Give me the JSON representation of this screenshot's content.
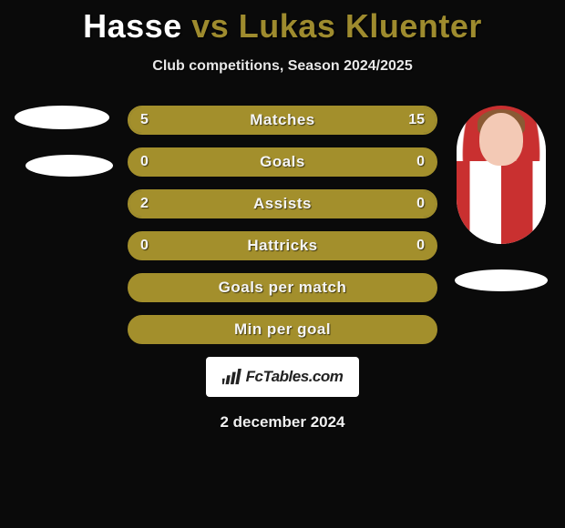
{
  "title": {
    "player1": "Hasse",
    "vs": "vs",
    "player2": "Lukas Kluenter"
  },
  "subtitle": "Club competitions, Season 2024/2025",
  "colors": {
    "border": "#a38f2c",
    "fill": "#a38f2c",
    "fill_neutral": "#5a5a43",
    "background": "#0a0a0a",
    "text": "#ffffff"
  },
  "stats": [
    {
      "label": "Matches",
      "left_value": "5",
      "right_value": "15",
      "left_pct": 22,
      "right_pct": 78,
      "left_fill": "#a38f2c",
      "right_fill": "#a38f2c",
      "mid_fill": "#5a5a43"
    },
    {
      "label": "Goals",
      "left_value": "0",
      "right_value": "0",
      "left_pct": 0,
      "right_pct": 0,
      "left_fill": "#a38f2c",
      "right_fill": "#a38f2c",
      "mid_fill": "#a38f2c"
    },
    {
      "label": "Assists",
      "left_value": "2",
      "right_value": "0",
      "left_pct": 78,
      "right_pct": 22,
      "left_fill": "#a38f2c",
      "right_fill": "#a38f2c",
      "mid_fill": "#5a5a43"
    },
    {
      "label": "Hattricks",
      "left_value": "0",
      "right_value": "0",
      "left_pct": 0,
      "right_pct": 0,
      "left_fill": "#a38f2c",
      "right_fill": "#a38f2c",
      "mid_fill": "#a38f2c"
    },
    {
      "label": "Goals per match",
      "left_value": "",
      "right_value": "",
      "left_pct": 0,
      "right_pct": 0,
      "left_fill": "#a38f2c",
      "right_fill": "#a38f2c",
      "mid_fill": "#a38f2c"
    },
    {
      "label": "Min per goal",
      "left_value": "",
      "right_value": "",
      "left_pct": 0,
      "right_pct": 0,
      "left_fill": "#a38f2c",
      "right_fill": "#a38f2c",
      "mid_fill": "#a38f2c"
    }
  ],
  "logo": {
    "text": "FcTables.com"
  },
  "date": "2 december 2024"
}
